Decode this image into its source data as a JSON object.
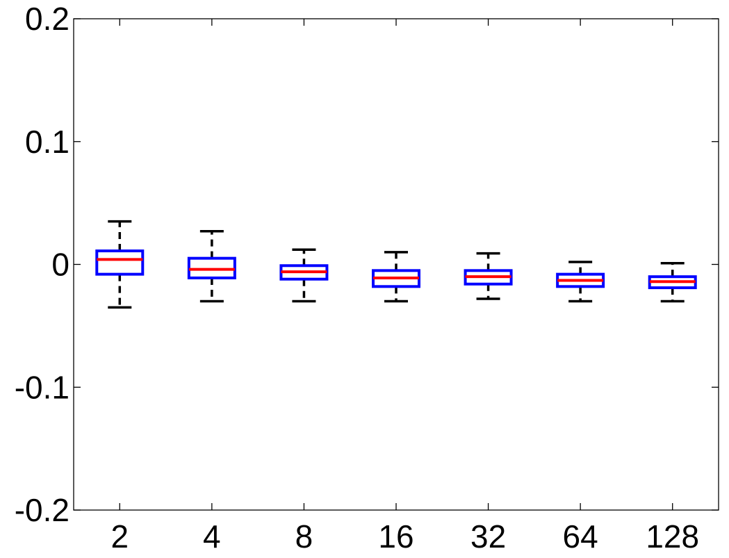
{
  "chart_data": {
    "type": "box",
    "title": "",
    "xlabel": "",
    "ylabel": "",
    "categories": [
      "2",
      "4",
      "8",
      "16",
      "32",
      "64",
      "128"
    ],
    "ylim": [
      -0.2,
      0.2
    ],
    "yticks": [
      -0.2,
      -0.1,
      0,
      0.1,
      0.2
    ],
    "ytick_labels": [
      "-0.2",
      "-0.1",
      "0",
      "0.1",
      "0.2"
    ],
    "boxes": [
      {
        "category": "2",
        "whisker_low": -0.035,
        "q1": -0.008,
        "median": 0.004,
        "q3": 0.011,
        "whisker_high": 0.035
      },
      {
        "category": "4",
        "whisker_low": -0.03,
        "q1": -0.011,
        "median": -0.004,
        "q3": 0.005,
        "whisker_high": 0.027
      },
      {
        "category": "8",
        "whisker_low": -0.03,
        "q1": -0.012,
        "median": -0.006,
        "q3": -0.001,
        "whisker_high": 0.012
      },
      {
        "category": "16",
        "whisker_low": -0.03,
        "q1": -0.018,
        "median": -0.011,
        "q3": -0.005,
        "whisker_high": 0.01
      },
      {
        "category": "32",
        "whisker_low": -0.028,
        "q1": -0.016,
        "median": -0.01,
        "q3": -0.005,
        "whisker_high": 0.009
      },
      {
        "category": "64",
        "whisker_low": -0.03,
        "q1": -0.018,
        "median": -0.013,
        "q3": -0.008,
        "whisker_high": 0.002
      },
      {
        "category": "128",
        "whisker_low": -0.03,
        "q1": -0.019,
        "median": -0.014,
        "q3": -0.01,
        "whisker_high": 0.001
      }
    ],
    "grid": false,
    "legend": "none",
    "colors": {
      "box": "#0000ff",
      "median": "#ff0000",
      "whisker": "#000000",
      "axes": "#000000"
    }
  }
}
